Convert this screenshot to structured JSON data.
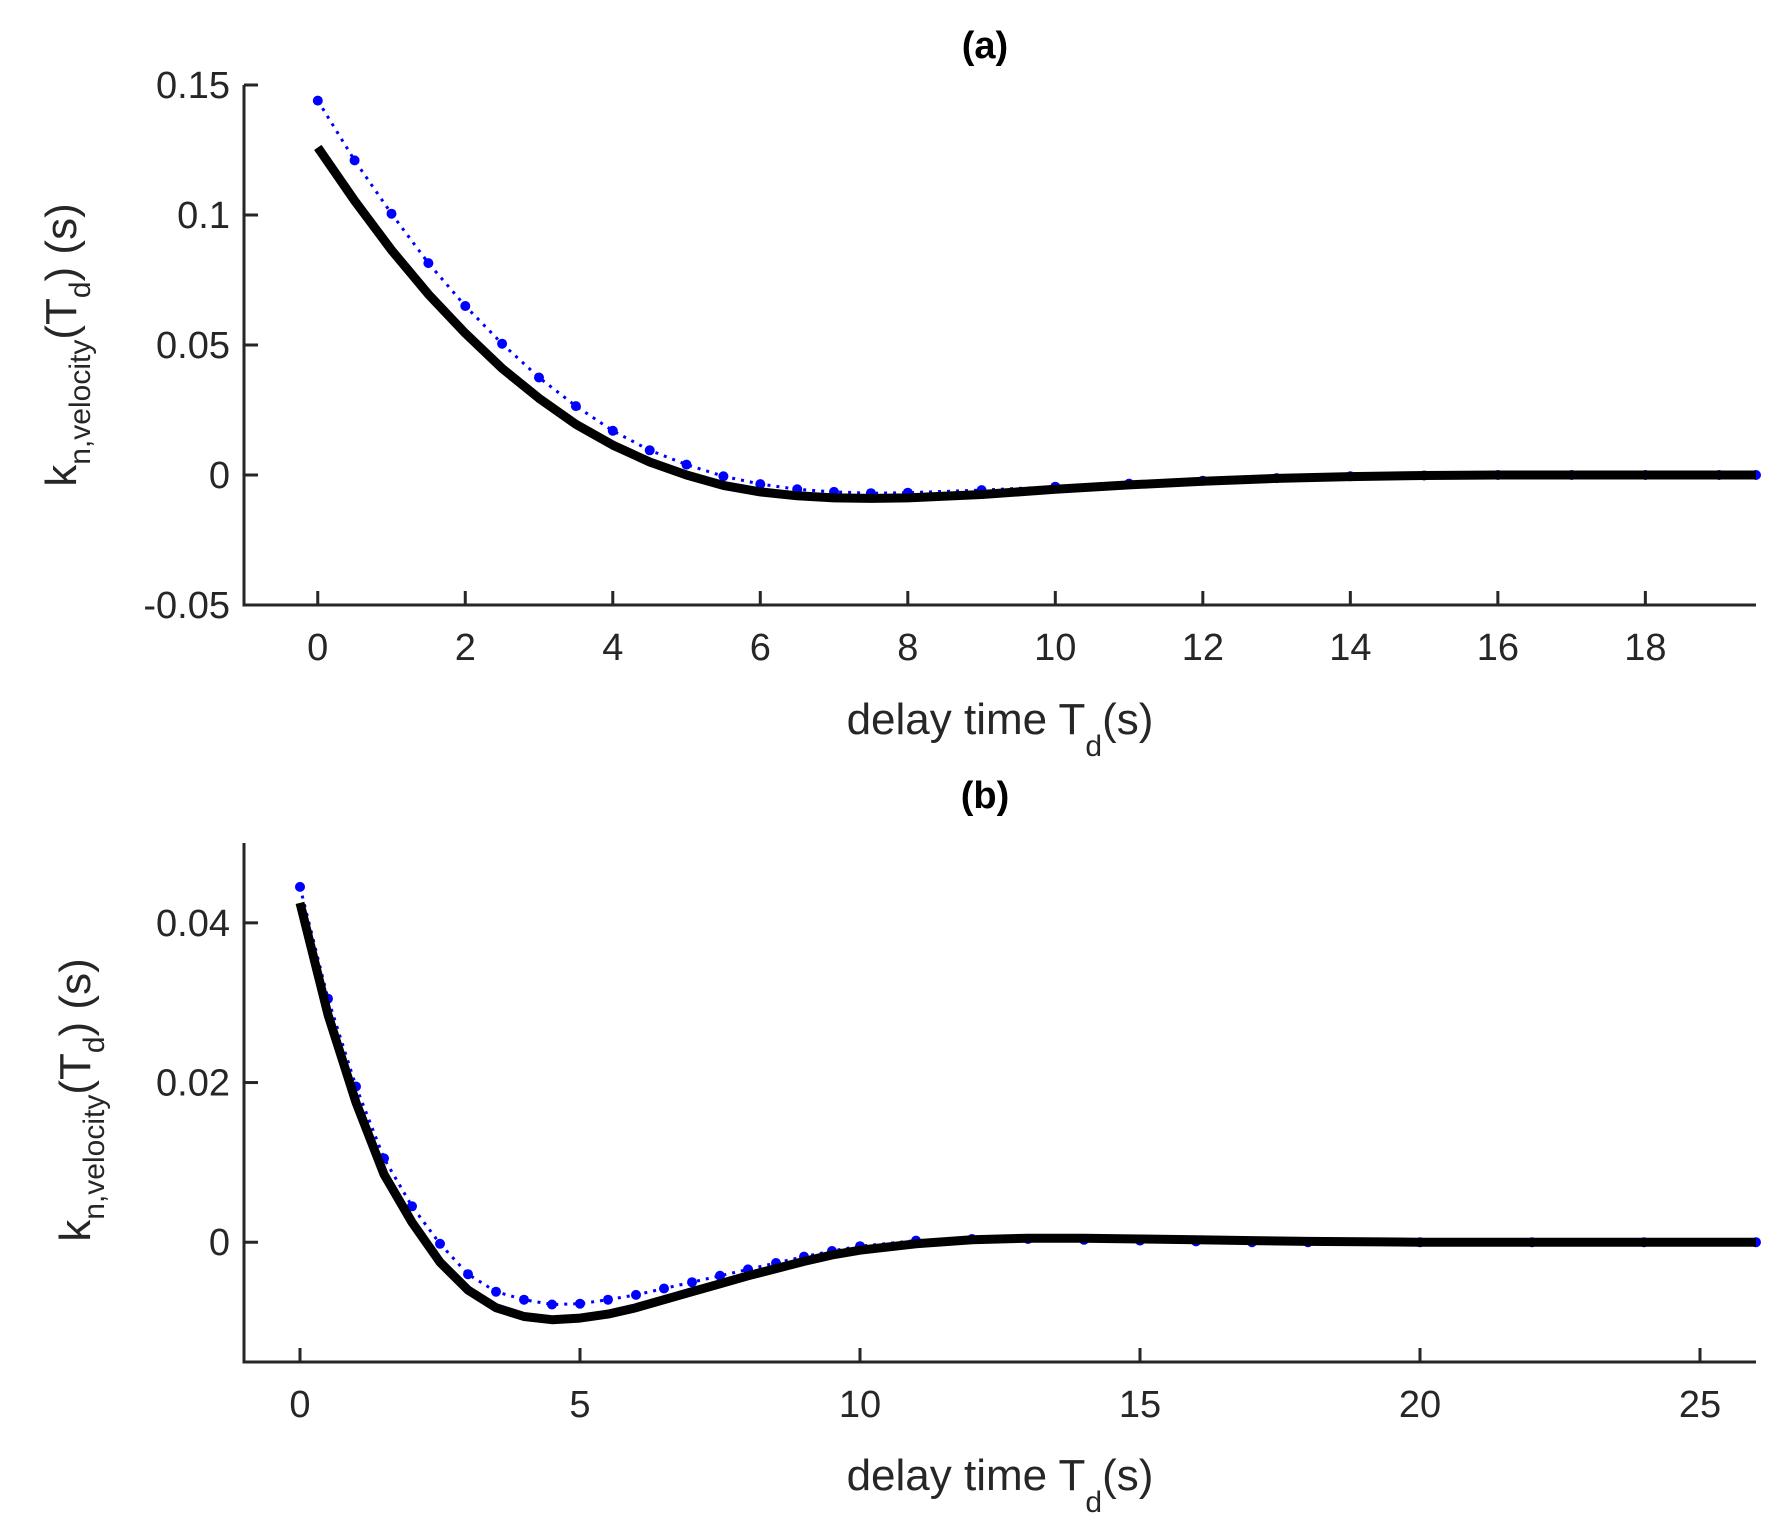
{
  "colors": {
    "measured": "#0000ff",
    "model": "#000000",
    "axis": "#262626"
  },
  "chart_data": [
    {
      "type": "line",
      "title": "(a)",
      "xlabel": {
        "main": "delay time T",
        "sub": "d",
        "suffix": "(s)"
      },
      "ylabel": {
        "main": "k",
        "sub": "n,velocity",
        "mid": "(T",
        "sub2": "d",
        "suffix": ") (s)"
      },
      "xlim": [
        -1,
        19.5
      ],
      "ylim": [
        -0.05,
        0.15
      ],
      "xticks": [
        0,
        2,
        4,
        6,
        8,
        10,
        12,
        14,
        16,
        18
      ],
      "xtick_labels": [
        "0",
        "2",
        "4",
        "6",
        "8",
        "10",
        "12",
        "14",
        "16",
        "18"
      ],
      "yticks": [
        -0.05,
        0,
        0.05,
        0.1,
        0.15
      ],
      "ytick_labels": [
        "-0.05",
        "0",
        "0.05",
        "0.1",
        "0.15"
      ],
      "grid": false,
      "series": [
        {
          "style": "dotted-markers",
          "x": [
            0,
            0.5,
            1,
            1.5,
            2,
            2.5,
            3,
            3.5,
            4,
            4.5,
            5,
            5.5,
            6,
            6.5,
            7,
            7.5,
            8,
            9,
            10,
            11,
            12,
            13,
            14,
            15,
            16,
            17,
            18,
            19,
            19.5
          ],
          "y": [
            0.144,
            0.121,
            0.1005,
            0.0815,
            0.065,
            0.0505,
            0.0375,
            0.0265,
            0.017,
            0.0095,
            0.004,
            -0.0005,
            -0.0035,
            -0.0055,
            -0.0065,
            -0.007,
            -0.0068,
            -0.0058,
            -0.0045,
            -0.0033,
            -0.0022,
            -0.0012,
            -0.0005,
            -0.0002,
            0,
            0,
            0,
            0,
            0
          ]
        },
        {
          "style": "solid-thick",
          "x": [
            0,
            0.5,
            1,
            1.5,
            2,
            2.5,
            3,
            3.5,
            4,
            4.5,
            5,
            5.5,
            6,
            6.5,
            7,
            7.5,
            8,
            9,
            10,
            11,
            12,
            13,
            14,
            15,
            16,
            17,
            18,
            19,
            19.5
          ],
          "y": [
            0.126,
            0.1055,
            0.0865,
            0.0695,
            0.0545,
            0.041,
            0.0295,
            0.0195,
            0.0115,
            0.005,
            0.0,
            -0.004,
            -0.0065,
            -0.008,
            -0.0088,
            -0.009,
            -0.0088,
            -0.0075,
            -0.0055,
            -0.0038,
            -0.0024,
            -0.0013,
            -0.0006,
            -0.0002,
            0,
            0,
            0,
            0,
            0
          ]
        }
      ]
    },
    {
      "type": "line",
      "title": "(b)",
      "xlabel": {
        "main": "delay time T",
        "sub": "d",
        "suffix": "(s)"
      },
      "ylabel": {
        "main": "k",
        "sub": "n,velocity",
        "mid": "(T",
        "sub2": "d",
        "suffix": ") (s)"
      },
      "xlim": [
        -1,
        26
      ],
      "ylim": [
        -0.015,
        0.05
      ],
      "xticks": [
        0,
        5,
        10,
        15,
        20,
        25
      ],
      "xtick_labels": [
        "0",
        "5",
        "10",
        "15",
        "20",
        "25"
      ],
      "yticks": [
        0,
        0.02,
        0.04
      ],
      "ytick_labels": [
        "0",
        "0.02",
        "0.04"
      ],
      "grid": false,
      "series": [
        {
          "style": "dotted-markers",
          "x": [
            0,
            0.5,
            1,
            1.5,
            2,
            2.5,
            3,
            3.5,
            4,
            4.5,
            5,
            5.5,
            6,
            6.5,
            7,
            7.5,
            8,
            8.5,
            9,
            9.5,
            10,
            11,
            12,
            13,
            14,
            15,
            16,
            17,
            18,
            20,
            22,
            24,
            26
          ],
          "y": [
            0.0445,
            0.0305,
            0.0195,
            0.0105,
            0.0045,
            -0.0002,
            -0.004,
            -0.0062,
            -0.0072,
            -0.0078,
            -0.0077,
            -0.0072,
            -0.0066,
            -0.0058,
            -0.005,
            -0.0042,
            -0.0034,
            -0.0026,
            -0.0018,
            -0.0011,
            -0.0005,
            0.0002,
            0.0004,
            0.0004,
            0.0003,
            0.0002,
            0.0001,
            0,
            0,
            0,
            0,
            0,
            0
          ]
        },
        {
          "style": "solid-thick",
          "x": [
            0,
            0.5,
            1,
            1.5,
            2,
            2.5,
            3,
            3.5,
            4,
            4.5,
            5,
            5.5,
            6,
            6.5,
            7,
            7.5,
            8,
            8.5,
            9,
            9.5,
            10,
            11,
            12,
            13,
            14,
            15,
            16,
            17,
            18,
            20,
            22,
            24,
            26
          ],
          "y": [
            0.0425,
            0.0285,
            0.0175,
            0.0085,
            0.0025,
            -0.0025,
            -0.006,
            -0.0082,
            -0.0093,
            -0.0097,
            -0.0095,
            -0.009,
            -0.0082,
            -0.0072,
            -0.0062,
            -0.0052,
            -0.0042,
            -0.0033,
            -0.0024,
            -0.0016,
            -0.001,
            -0.0002,
            0.0003,
            0.0005,
            0.0005,
            0.0004,
            0.0003,
            0.0002,
            0.0001,
            0,
            0,
            0,
            0
          ]
        }
      ]
    }
  ]
}
